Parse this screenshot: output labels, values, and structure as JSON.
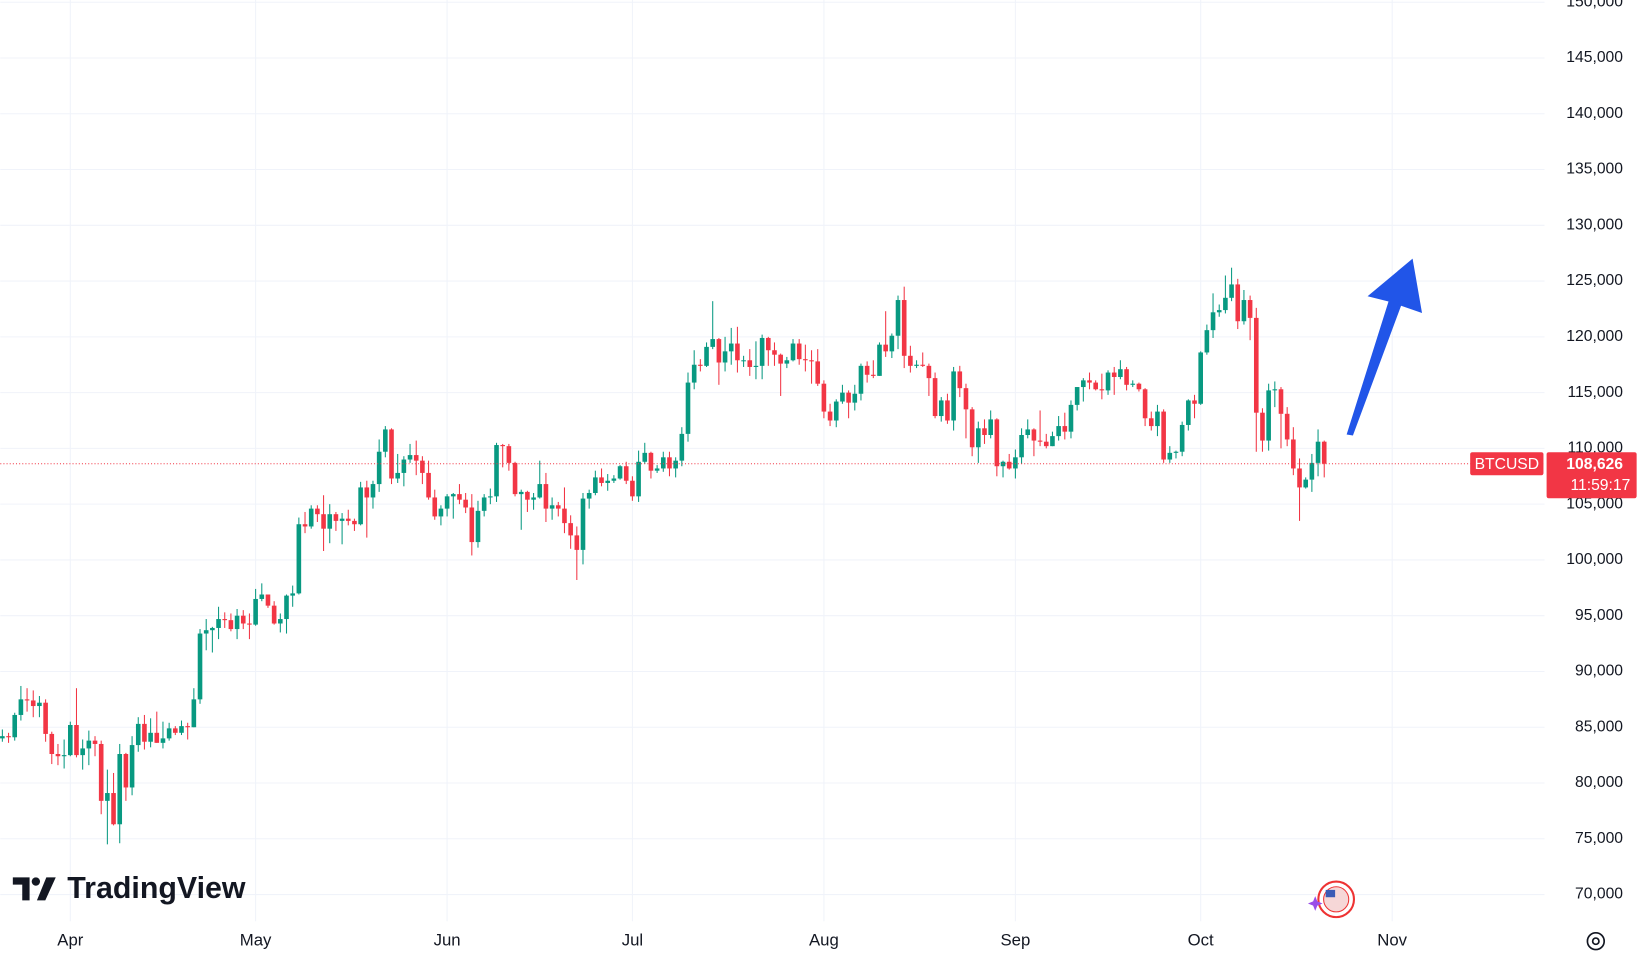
{
  "chart_data": {
    "type": "candlestick",
    "watermark": "TradingView",
    "up_color": "#089981",
    "down_color": "#f23645",
    "grid": true,
    "ylim": [
      67600,
      150200
    ],
    "yticks": [
      {
        "value": 70000,
        "label": "70,000"
      },
      {
        "value": 75000,
        "label": "75,000"
      },
      {
        "value": 80000,
        "label": "80,000"
      },
      {
        "value": 85000,
        "label": "85,000"
      },
      {
        "value": 90000,
        "label": "90,000"
      },
      {
        "value": 95000,
        "label": "95,000"
      },
      {
        "value": 100000,
        "label": "100,000"
      },
      {
        "value": 105000,
        "label": "105,000"
      },
      {
        "value": 110000,
        "label": "110,000"
      },
      {
        "value": 115000,
        "label": "115,000"
      },
      {
        "value": 120000,
        "label": "120,000"
      },
      {
        "value": 125000,
        "label": "125,000"
      },
      {
        "value": 130000,
        "label": "130,000"
      },
      {
        "value": 135000,
        "label": "135,000"
      },
      {
        "value": 140000,
        "label": "140,000"
      },
      {
        "value": 145000,
        "label": "145,000"
      },
      {
        "value": 150000,
        "label": "150,000"
      }
    ],
    "price_tag": {
      "symbol": "BTCUSD",
      "value": 108626,
      "label": "108,626",
      "countdown": "11:59:17"
    },
    "categories": [
      null,
      null,
      null,
      null,
      null,
      null,
      null,
      null,
      null,
      null,
      null,
      "Apr",
      null,
      null,
      null,
      null,
      null,
      null,
      null,
      null,
      null,
      null,
      null,
      null,
      null,
      null,
      null,
      null,
      null,
      null,
      null,
      null,
      null,
      null,
      null,
      null,
      null,
      null,
      null,
      null,
      null,
      "May",
      null,
      null,
      null,
      null,
      null,
      null,
      null,
      null,
      null,
      null,
      null,
      null,
      null,
      null,
      null,
      null,
      null,
      null,
      null,
      null,
      null,
      null,
      null,
      null,
      null,
      null,
      null,
      null,
      null,
      null,
      "Jun",
      null,
      null,
      null,
      null,
      null,
      null,
      null,
      null,
      null,
      null,
      null,
      null,
      null,
      null,
      null,
      null,
      null,
      null,
      null,
      null,
      null,
      null,
      null,
      null,
      null,
      null,
      null,
      null,
      null,
      "Jul",
      null,
      null,
      null,
      null,
      null,
      null,
      null,
      null,
      null,
      null,
      null,
      null,
      null,
      null,
      null,
      null,
      null,
      null,
      null,
      null,
      null,
      null,
      null,
      null,
      null,
      null,
      null,
      null,
      null,
      null,
      "Aug",
      null,
      null,
      null,
      null,
      null,
      null,
      null,
      null,
      null,
      null,
      null,
      null,
      null,
      null,
      null,
      null,
      null,
      null,
      null,
      null,
      null,
      null,
      null,
      null,
      null,
      null,
      null,
      null,
      null,
      null,
      "Sep",
      null,
      null,
      null,
      null,
      null,
      null,
      null,
      null,
      null,
      null,
      null,
      null,
      null,
      null,
      null,
      null,
      null,
      null,
      null,
      null,
      null,
      null,
      null,
      null,
      null,
      null,
      null,
      null,
      null,
      "Oct",
      null,
      null,
      null,
      null,
      null,
      null,
      null,
      null,
      null,
      null,
      null,
      null,
      null,
      null,
      null,
      null,
      null,
      null,
      null,
      null,
      null,
      null,
      null,
      null,
      null,
      null,
      null,
      null,
      null,
      null,
      "Nov"
    ],
    "open": [
      84000,
      84200,
      84100,
      86100,
      87500,
      87400,
      86900,
      87200,
      84400,
      82600,
      82400,
      82500,
      85200,
      82500,
      83100,
      83800,
      83500,
      78400,
      79100,
      76300,
      82600,
      79600,
      83400,
      85300,
      83700,
      84500,
      83600,
      84000,
      84900,
      84500,
      85100,
      85000,
      87500,
      93400,
      93700,
      93900,
      94700,
      94600,
      93800,
      95000,
      94300,
      94200,
      96500,
      96900,
      95900,
      94300,
      94700,
      96800,
      97000,
      103200,
      103000,
      104600,
      104100,
      102800,
      104100,
      103500,
      103700,
      103500,
      103200,
      106500,
      105600,
      106800,
      109700,
      111700,
      107300,
      107800,
      109000,
      109400,
      108900,
      107800,
      105600,
      103900,
      104600,
      105700,
      105900,
      105400,
      104700,
      101600,
      104400,
      105600,
      105700,
      110300,
      110200,
      108700,
      105900,
      106100,
      105400,
      105600,
      106800,
      104600,
      104900,
      104600,
      103300,
      102200,
      100900,
      105500,
      106000,
      107400,
      106900,
      107100,
      107300,
      108400,
      107100,
      105700,
      108800,
      109600,
      108000,
      108200,
      109200,
      108200,
      108900,
      111300,
      115900,
      117500,
      117400,
      119100,
      119800,
      117700,
      118700,
      119400,
      117900,
      117900,
      117300,
      117400,
      119900,
      118800,
      118400,
      117600,
      117900,
      119400,
      118000,
      117900,
      117800,
      115800,
      113300,
      112500,
      114200,
      115000,
      114100,
      114900,
      117400,
      116600,
      116500,
      119300,
      118700,
      120100,
      123300,
      118300,
      117400,
      117500,
      117400,
      116300,
      112900,
      114300,
      112500,
      116900,
      115400,
      113500,
      110100,
      111800,
      111200,
      112600,
      108400,
      108800,
      108200,
      109200,
      111200,
      111700,
      110700,
      110600,
      110200,
      111100,
      112000,
      111500,
      113900,
      115500,
      116100,
      115900,
      115300,
      115200,
      116800,
      116400,
      117100,
      115700,
      115800,
      115300,
      112700,
      112000,
      113300,
      109000,
      109600,
      109700,
      112100,
      114300,
      114000,
      118600,
      120600,
      122200,
      122400,
      123500,
      124700,
      121400,
      123300,
      121700,
      113200,
      110700,
      115200,
      115300,
      113100,
      110800,
      108200,
      106500,
      107200,
      108700,
      110600,
      null,
      null,
      null,
      null,
      null,
      null,
      null,
      null,
      null,
      null,
      null
    ],
    "high": [
      84800,
      84500,
      86300,
      88700,
      88500,
      88300,
      87800,
      87500,
      84600,
      83500,
      83900,
      85500,
      88500,
      83900,
      84700,
      84200,
      83800,
      81200,
      80900,
      83500,
      82700,
      84200,
      85900,
      86100,
      85800,
      86400,
      85500,
      85400,
      85100,
      85600,
      85400,
      88500,
      93800,
      94700,
      94000,
      95800,
      95300,
      95200,
      95600,
      95500,
      95200,
      97400,
      97900,
      96900,
      96300,
      95200,
      96900,
      97700,
      103800,
      104300,
      104900,
      104900,
      105800,
      105000,
      104300,
      104200,
      104500,
      103700,
      107000,
      107100,
      107100,
      110800,
      112000,
      111800,
      109500,
      109300,
      110400,
      110700,
      109300,
      108900,
      106300,
      104900,
      105900,
      106000,
      106800,
      106000,
      105900,
      105300,
      105900,
      106400,
      110500,
      110400,
      110400,
      108800,
      106300,
      106200,
      106000,
      108900,
      107800,
      105600,
      105200,
      106500,
      104000,
      103000,
      106000,
      106300,
      108000,
      108200,
      107700,
      107600,
      108500,
      108800,
      107500,
      109800,
      110500,
      109700,
      108500,
      109700,
      109700,
      109200,
      111900,
      116800,
      118800,
      118000,
      119500,
      123200,
      119900,
      120000,
      120800,
      120900,
      118300,
      118900,
      119600,
      120200,
      120000,
      119500,
      118500,
      118200,
      119800,
      119800,
      119300,
      118800,
      118900,
      116100,
      114000,
      114400,
      115700,
      115200,
      115700,
      117600,
      117800,
      117900,
      119500,
      122300,
      120300,
      123700,
      124500,
      119200,
      117900,
      118600,
      117600,
      116800,
      114600,
      114900,
      117300,
      117400,
      115800,
      113700,
      112400,
      112600,
      113400,
      112700,
      108900,
      109500,
      109900,
      111800,
      112600,
      111800,
      113400,
      111300,
      111500,
      112900,
      113200,
      114300,
      115500,
      116300,
      116800,
      116100,
      116700,
      117000,
      117300,
      117900,
      117300,
      116100,
      115900,
      115400,
      113300,
      113900,
      113500,
      110200,
      109800,
      112400,
      114400,
      114800,
      118700,
      121100,
      123900,
      122900,
      125500,
      126200,
      125200,
      124200,
      123700,
      122600,
      113600,
      115800,
      116000,
      115500,
      113700,
      111900,
      109100,
      107400,
      109500,
      111700,
      110700,
      null,
      null,
      null,
      null,
      null,
      null,
      null,
      null,
      null,
      null,
      null
    ],
    "low": [
      83700,
      83600,
      83800,
      85600,
      86400,
      85900,
      85900,
      83700,
      81700,
      81600,
      81300,
      82400,
      82300,
      81200,
      81600,
      82400,
      77200,
      74500,
      76200,
      74600,
      78400,
      78900,
      82800,
      83000,
      83200,
      83600,
      83100,
      83800,
      84300,
      84300,
      83900,
      85000,
      87100,
      91900,
      91700,
      92900,
      93900,
      93600,
      92900,
      93800,
      92900,
      94100,
      96300,
      95700,
      94200,
      93500,
      93400,
      95800,
      96900,
      102400,
      102800,
      103400,
      100800,
      101500,
      102600,
      101400,
      103100,
      102600,
      103100,
      102000,
      104600,
      106100,
      109200,
      106800,
      106900,
      106600,
      108700,
      107600,
      106800,
      105400,
      103600,
      103100,
      103900,
      103700,
      105000,
      104200,
      100400,
      101100,
      103900,
      105000,
      105200,
      108300,
      108000,
      105700,
      102700,
      104300,
      104500,
      105500,
      103400,
      103600,
      103900,
      102400,
      101000,
      98200,
      99600,
      104600,
      105800,
      106600,
      106200,
      106900,
      107200,
      106800,
      105300,
      105200,
      108600,
      107300,
      107800,
      107900,
      107500,
      107400,
      108400,
      110600,
      115300,
      116900,
      117300,
      118900,
      115700,
      116900,
      117500,
      116800,
      117300,
      116500,
      116200,
      116200,
      117400,
      117400,
      114700,
      117200,
      117800,
      117500,
      116900,
      115800,
      115600,
      112700,
      112000,
      111900,
      114000,
      112700,
      113400,
      114300,
      115900,
      116300,
      116500,
      118200,
      118100,
      118900,
      117200,
      116800,
      117200,
      117300,
      114700,
      112700,
      112400,
      112200,
      111600,
      114600,
      110900,
      109300,
      108700,
      110400,
      110900,
      107500,
      107400,
      108100,
      107300,
      108600,
      110900,
      109300,
      110200,
      110000,
      110200,
      110700,
      110800,
      110900,
      113400,
      114200,
      115300,
      115200,
      114400,
      114800,
      114800,
      116200,
      115200,
      115500,
      115100,
      112000,
      111600,
      111100,
      108700,
      108700,
      109100,
      109300,
      111600,
      112700,
      113900,
      118400,
      119900,
      121800,
      122100,
      123200,
      120700,
      121100,
      119700,
      109700,
      109700,
      109800,
      113700,
      110000,
      110200,
      107600,
      103500,
      106400,
      106100,
      107500,
      107400,
      null,
      null,
      null,
      null,
      null,
      null,
      null,
      null,
      null,
      null,
      null
    ],
    "close": [
      84200,
      84100,
      86100,
      87500,
      87400,
      86900,
      87200,
      84400,
      82600,
      82400,
      82500,
      85200,
      82500,
      83100,
      83800,
      83500,
      78400,
      79100,
      76300,
      82600,
      79600,
      83400,
      85300,
      83700,
      84500,
      83600,
      84000,
      84900,
      84500,
      85100,
      85000,
      87500,
      93400,
      93700,
      93900,
      94700,
      94600,
      93800,
      95000,
      94300,
      94200,
      96500,
      96900,
      95900,
      94300,
      94700,
      96800,
      97000,
      103200,
      103000,
      104600,
      104100,
      102800,
      104100,
      103500,
      103700,
      103500,
      103200,
      106500,
      105600,
      106800,
      109700,
      111700,
      107300,
      107800,
      109000,
      109400,
      108900,
      107800,
      105600,
      103900,
      104600,
      105700,
      105900,
      105400,
      104700,
      101600,
      104400,
      105600,
      105700,
      110300,
      110200,
      108700,
      105900,
      106100,
      105400,
      105600,
      106800,
      104600,
      104900,
      104600,
      103300,
      102200,
      100900,
      105500,
      106000,
      107400,
      106900,
      107100,
      107300,
      108400,
      107100,
      105700,
      108800,
      109600,
      108000,
      108200,
      109200,
      108200,
      108900,
      111300,
      115900,
      117500,
      117400,
      119100,
      119800,
      117700,
      118700,
      119400,
      117900,
      117900,
      117300,
      117400,
      119900,
      118800,
      118400,
      117600,
      117900,
      119400,
      118000,
      117900,
      117800,
      115800,
      113300,
      112500,
      114200,
      115000,
      114100,
      114900,
      117400,
      116600,
      116500,
      119300,
      118700,
      120100,
      123300,
      118300,
      117400,
      117500,
      117400,
      116300,
      112900,
      114300,
      112500,
      116900,
      115400,
      113500,
      110100,
      111800,
      111200,
      112600,
      108400,
      108800,
      108200,
      109200,
      111200,
      111700,
      110700,
      110600,
      110200,
      111100,
      112000,
      111500,
      113900,
      115500,
      116100,
      115900,
      115300,
      115200,
      116800,
      116400,
      117100,
      115700,
      115800,
      115300,
      112700,
      112000,
      113300,
      109000,
      109600,
      109700,
      112100,
      114300,
      114000,
      118600,
      120600,
      122200,
      122400,
      123500,
      124700,
      121400,
      123300,
      121700,
      113200,
      110700,
      115200,
      115300,
      113100,
      110800,
      108200,
      106500,
      107200,
      108700,
      110600,
      108626,
      null,
      null,
      null,
      null,
      null,
      null,
      null,
      null,
      null,
      null,
      null
    ]
  }
}
